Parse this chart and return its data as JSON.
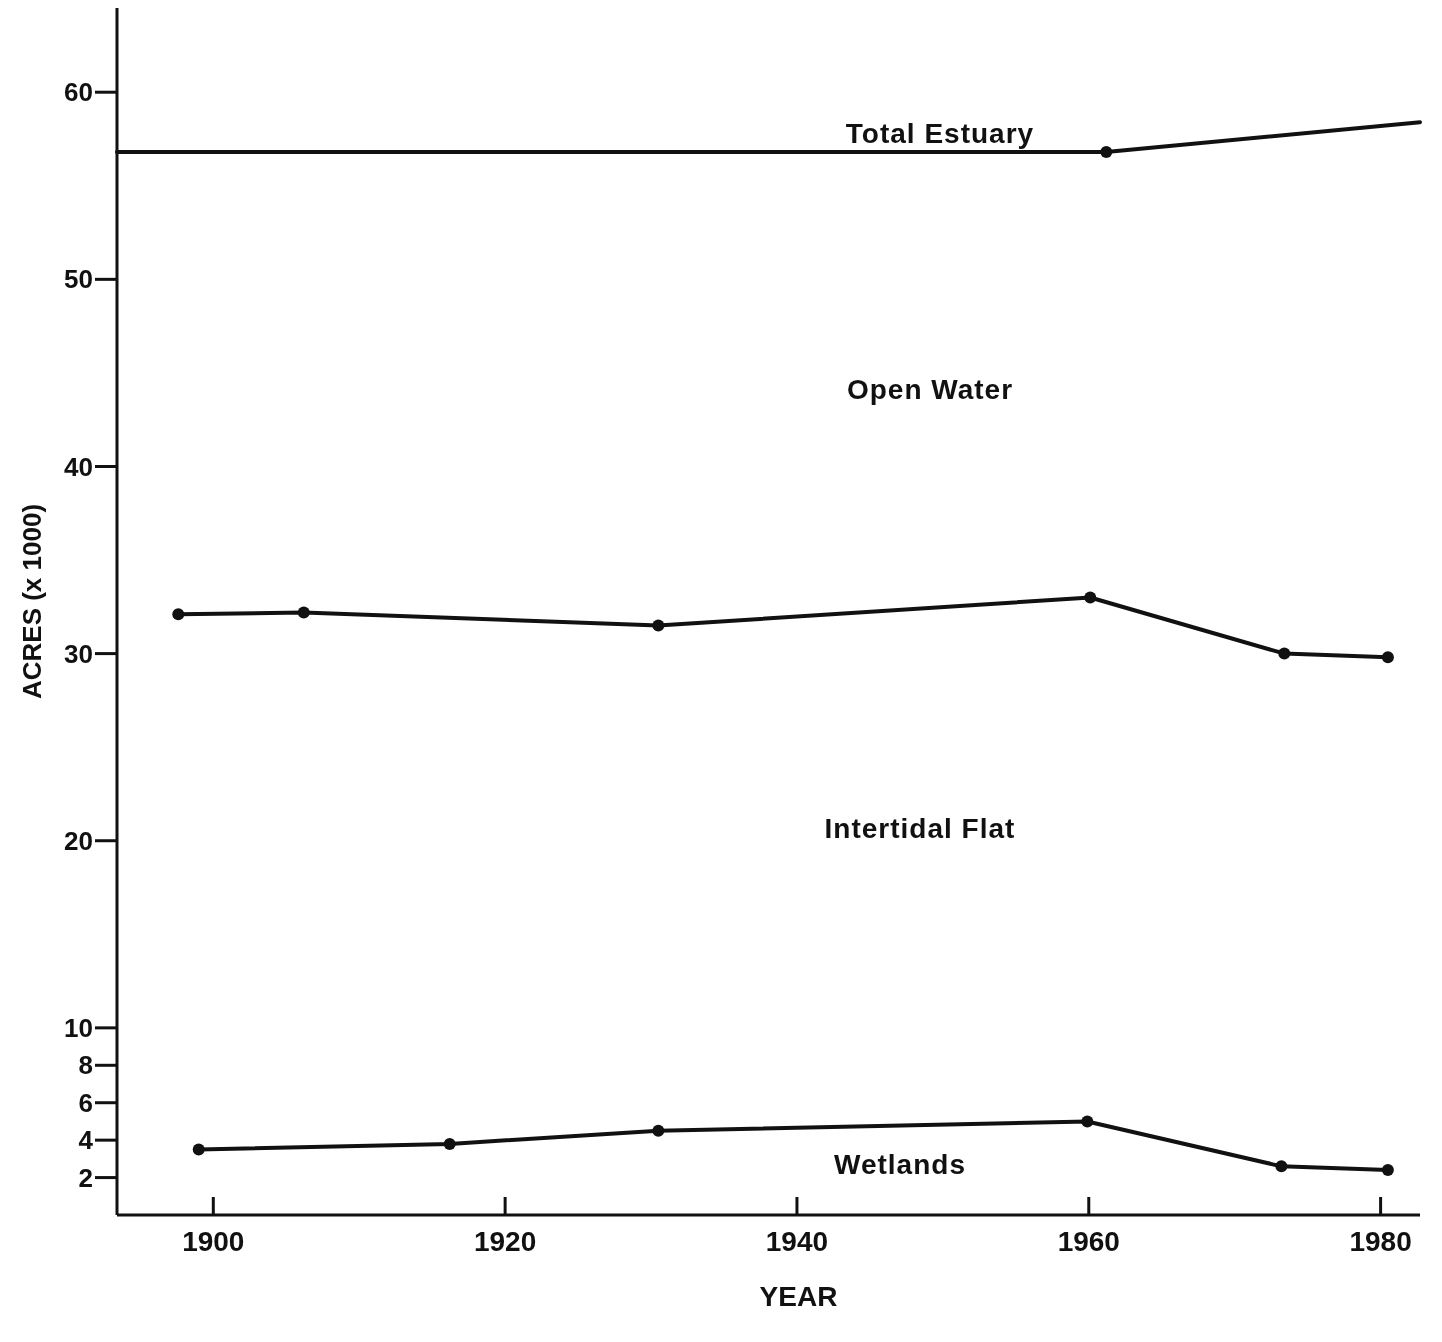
{
  "chart_data": {
    "type": "line",
    "xlabel": "YEAR",
    "ylabel": "ACRES (x 1000)",
    "xlim": [
      1893.4,
      1982.7
    ],
    "xticks": [
      1900,
      1920,
      1940,
      1960,
      1980
    ],
    "ylim": [
      0,
      64.5
    ],
    "yticks": [
      2,
      4,
      6,
      8,
      10,
      20,
      30,
      40,
      50,
      60
    ],
    "grid": false,
    "marker": "circle",
    "line_style": "solid",
    "series": [
      {
        "color": "#111111",
        "marker": "none",
        "x": [
          1893.4,
          1961.2,
          1982.7
        ],
        "values": [
          56.8,
          56.8,
          58.4
        ]
      },
      {
        "type": "scatter",
        "color": "#111111",
        "x": [
          1961.2
        ],
        "values": [
          56.8
        ]
      },
      {
        "color": "#111111",
        "x": [
          1897.6,
          1906.2,
          1930.5,
          1960.1,
          1973.4,
          1980.5
        ],
        "values": [
          32.1,
          32.2,
          31.5,
          33.0,
          30.0,
          29.8
        ]
      },
      {
        "color": "#111111",
        "x": [
          1899.0,
          1916.2,
          1930.5,
          1959.9,
          1973.2,
          1980.5
        ],
        "values": [
          3.5,
          3.8,
          4.5,
          5.0,
          2.6,
          2.4
        ]
      }
    ],
    "annotations": [
      "Total Estuary",
      "Open Water",
      "Intertidal Flat",
      "Wetlands"
    ]
  }
}
